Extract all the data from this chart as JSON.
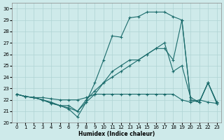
{
  "xlabel": "Humidex (Indice chaleur)",
  "background_color": "#ceeaea",
  "grid_color": "#afd4d4",
  "line_color": "#1a6b6b",
  "xlim": [
    -0.5,
    23.5
  ],
  "ylim": [
    20,
    30.5
  ],
  "yticks": [
    20,
    21,
    22,
    23,
    24,
    25,
    26,
    27,
    28,
    29,
    30
  ],
  "xticks": [
    0,
    1,
    2,
    3,
    4,
    5,
    6,
    7,
    8,
    9,
    10,
    11,
    12,
    13,
    14,
    15,
    16,
    17,
    18,
    19,
    20,
    21,
    22,
    23
  ],
  "series": [
    [
      22.5,
      22.3,
      22.2,
      22.2,
      22.1,
      22.0,
      22.0,
      22.0,
      22.2,
      22.5,
      22.5,
      22.5,
      22.5,
      22.5,
      22.5,
      22.5,
      22.5,
      22.5,
      22.5,
      22.0,
      21.8,
      22.0,
      21.8,
      21.7
    ],
    [
      22.5,
      22.3,
      22.2,
      22.0,
      21.7,
      21.5,
      21.2,
      20.5,
      21.8,
      23.5,
      25.5,
      27.6,
      27.5,
      29.2,
      29.3,
      29.7,
      29.7,
      29.7,
      29.3,
      29.0,
      22.0,
      21.8,
      23.5,
      21.7
    ],
    [
      22.5,
      22.3,
      22.2,
      22.0,
      21.8,
      21.5,
      21.5,
      21.0,
      21.8,
      22.5,
      23.5,
      24.5,
      25.0,
      25.5,
      25.5,
      26.0,
      26.5,
      26.5,
      25.5,
      29.0,
      22.0,
      21.8,
      23.5,
      21.8
    ],
    [
      22.5,
      22.3,
      22.2,
      22.0,
      21.7,
      21.5,
      21.3,
      21.0,
      22.0,
      22.8,
      23.5,
      24.0,
      24.5,
      25.0,
      25.5,
      26.0,
      26.5,
      27.0,
      24.5,
      25.0,
      22.2,
      21.8,
      23.5,
      21.8
    ]
  ]
}
